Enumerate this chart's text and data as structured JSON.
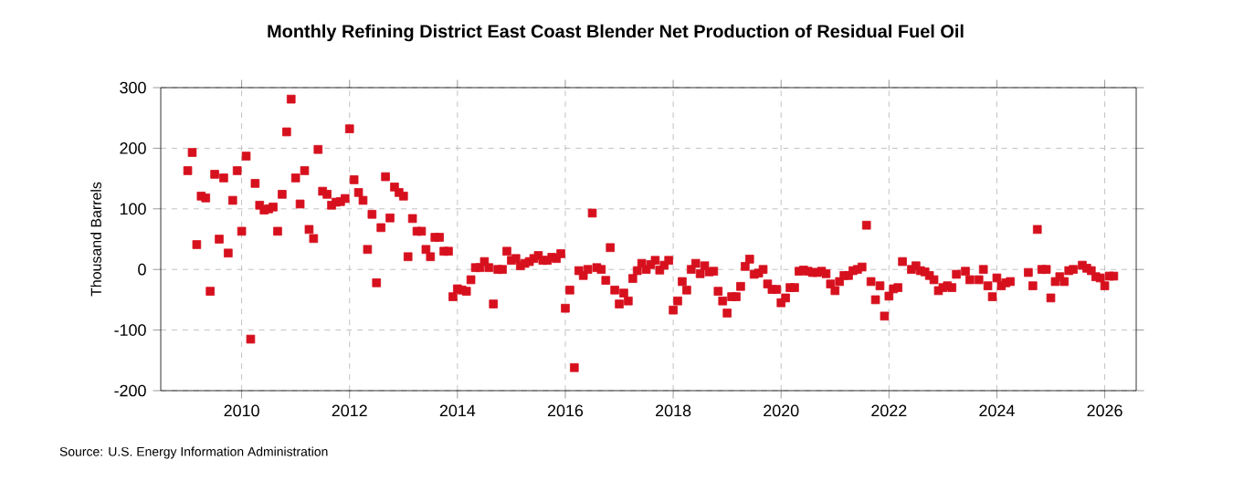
{
  "chart_data": {
    "type": "scatter",
    "title": "Monthly Refining District East Coast Blender Net Production of Residual Fuel Oil",
    "ylabel": "Thousand Barrels",
    "annotations": [
      "Source: U.S. Energy Information Administration"
    ],
    "xlim": [
      "2008-07",
      "2026-08"
    ],
    "xticks": [
      "2010",
      "2012",
      "2014",
      "2016",
      "2018",
      "2020",
      "2022",
      "2024",
      "2026"
    ],
    "ylim": [
      -200,
      300
    ],
    "yticks": [
      -200,
      -100,
      0,
      100,
      200,
      300
    ],
    "grid": true,
    "marker": "square",
    "color": "#d7101e",
    "x": [
      "2009-01",
      "2009-02",
      "2009-03",
      "2009-04",
      "2009-05",
      "2009-06",
      "2009-07",
      "2009-08",
      "2009-09",
      "2009-10",
      "2009-11",
      "2009-12",
      "2010-01",
      "2010-02",
      "2010-03",
      "2010-04",
      "2010-05",
      "2010-06",
      "2010-07",
      "2010-08",
      "2010-09",
      "2010-10",
      "2010-11",
      "2010-12",
      "2011-01",
      "2011-02",
      "2011-03",
      "2011-04",
      "2011-05",
      "2011-06",
      "2011-07",
      "2011-08",
      "2011-09",
      "2011-10",
      "2011-11",
      "2011-12",
      "2012-01",
      "2012-02",
      "2012-03",
      "2012-04",
      "2012-05",
      "2012-06",
      "2012-07",
      "2012-08",
      "2012-09",
      "2012-10",
      "2012-11",
      "2012-12",
      "2013-01",
      "2013-02",
      "2013-03",
      "2013-04",
      "2013-05",
      "2013-06",
      "2013-07",
      "2013-08",
      "2013-09",
      "2013-10",
      "2013-11",
      "2013-12",
      "2014-01",
      "2014-02",
      "2014-03",
      "2014-04",
      "2014-05",
      "2014-06",
      "2014-07",
      "2014-08",
      "2014-09",
      "2014-10",
      "2014-11",
      "2014-12",
      "2015-01",
      "2015-02",
      "2015-03",
      "2015-04",
      "2015-05",
      "2015-06",
      "2015-07",
      "2015-08",
      "2015-09",
      "2015-10",
      "2015-11",
      "2015-12",
      "2016-01",
      "2016-02",
      "2016-03",
      "2016-04",
      "2016-05",
      "2016-06",
      "2016-07",
      "2016-08",
      "2016-09",
      "2016-10",
      "2016-11",
      "2016-12",
      "2017-01",
      "2017-02",
      "2017-03",
      "2017-04",
      "2017-05",
      "2017-06",
      "2017-07",
      "2017-08",
      "2017-09",
      "2017-10",
      "2017-11",
      "2017-12",
      "2018-01",
      "2018-02",
      "2018-03",
      "2018-04",
      "2018-05",
      "2018-06",
      "2018-07",
      "2018-08",
      "2018-09",
      "2018-10",
      "2018-11",
      "2018-12",
      "2019-01",
      "2019-02",
      "2019-03",
      "2019-04",
      "2019-05",
      "2019-06",
      "2019-07",
      "2019-08",
      "2019-09",
      "2019-10",
      "2019-11",
      "2019-12",
      "2020-01",
      "2020-02",
      "2020-03",
      "2020-04",
      "2020-05",
      "2020-06",
      "2020-07",
      "2020-08",
      "2020-09",
      "2020-10",
      "2020-11",
      "2020-12",
      "2021-01",
      "2021-02",
      "2021-03",
      "2021-04",
      "2021-05",
      "2021-06",
      "2021-07",
      "2021-08",
      "2021-09",
      "2021-10",
      "2021-11",
      "2021-12",
      "2022-01",
      "2022-02",
      "2022-03",
      "2022-04",
      "2022-06",
      "2022-07",
      "2022-08",
      "2022-09",
      "2022-10",
      "2022-11",
      "2022-12",
      "2023-01",
      "2023-02",
      "2023-03",
      "2023-04",
      "2023-06",
      "2023-07",
      "2023-09",
      "2023-10",
      "2023-11",
      "2023-12",
      "2024-01",
      "2024-02",
      "2024-03",
      "2024-04",
      "2024-08",
      "2024-09",
      "2024-10",
      "2024-11",
      "2024-12",
      "2025-01",
      "2025-02",
      "2025-03",
      "2025-04",
      "2025-05",
      "2025-06",
      "2025-08",
      "2025-09",
      "2025-10",
      "2025-11",
      "2025-12",
      "2026-01",
      "2026-02",
      "2026-03"
    ],
    "values": [
      163,
      193,
      41,
      121,
      118,
      -36,
      157,
      50,
      151,
      27,
      114,
      163,
      63,
      187,
      -115,
      142,
      106,
      98,
      100,
      103,
      63,
      124,
      227,
      281,
      151,
      108,
      163,
      66,
      51,
      198,
      129,
      124,
      106,
      111,
      112,
      117,
      232,
      148,
      127,
      114,
      33,
      91,
      -22,
      69,
      153,
      85,
      136,
      127,
      121,
      21,
      84,
      63,
      63,
      33,
      21,
      53,
      53,
      30,
      30,
      -45,
      -32,
      -34,
      -36,
      -17,
      3,
      3,
      13,
      3,
      -57,
      0,
      0,
      30,
      15,
      18,
      6,
      10,
      13,
      18,
      23,
      15,
      15,
      20,
      18,
      26,
      -64,
      -34,
      -162,
      -2,
      -10,
      0,
      93,
      3,
      0,
      -18,
      36,
      -34,
      -57,
      -39,
      -52,
      -15,
      -2,
      10,
      0,
      8,
      15,
      -1,
      7,
      15,
      -67,
      -52,
      -20,
      -34,
      0,
      10,
      -7,
      6,
      -4,
      -3,
      -36,
      -52,
      -72,
      -45,
      -45,
      -28,
      5,
      17,
      -8,
      -6,
      0,
      -24,
      -33,
      -33,
      -55,
      -47,
      -30,
      -30,
      -3,
      -1,
      -3,
      -5,
      -5,
      -3,
      -7,
      -24,
      -35,
      -20,
      -10,
      -10,
      -2,
      0,
      4,
      73,
      -20,
      -50,
      -27,
      -77,
      -44,
      -32,
      -30,
      13,
      0,
      6,
      -2,
      -4,
      -10,
      -17,
      -35,
      -30,
      -27,
      -30,
      -8,
      -3,
      -17,
      -17,
      0,
      -27,
      -45,
      -14,
      -27,
      -22,
      -20,
      -5,
      -27,
      66,
      0,
      0,
      -47,
      -20,
      -12,
      -20,
      -2,
      0,
      7,
      2,
      -2,
      -12,
      -14,
      -27,
      -11,
      -11
    ]
  }
}
